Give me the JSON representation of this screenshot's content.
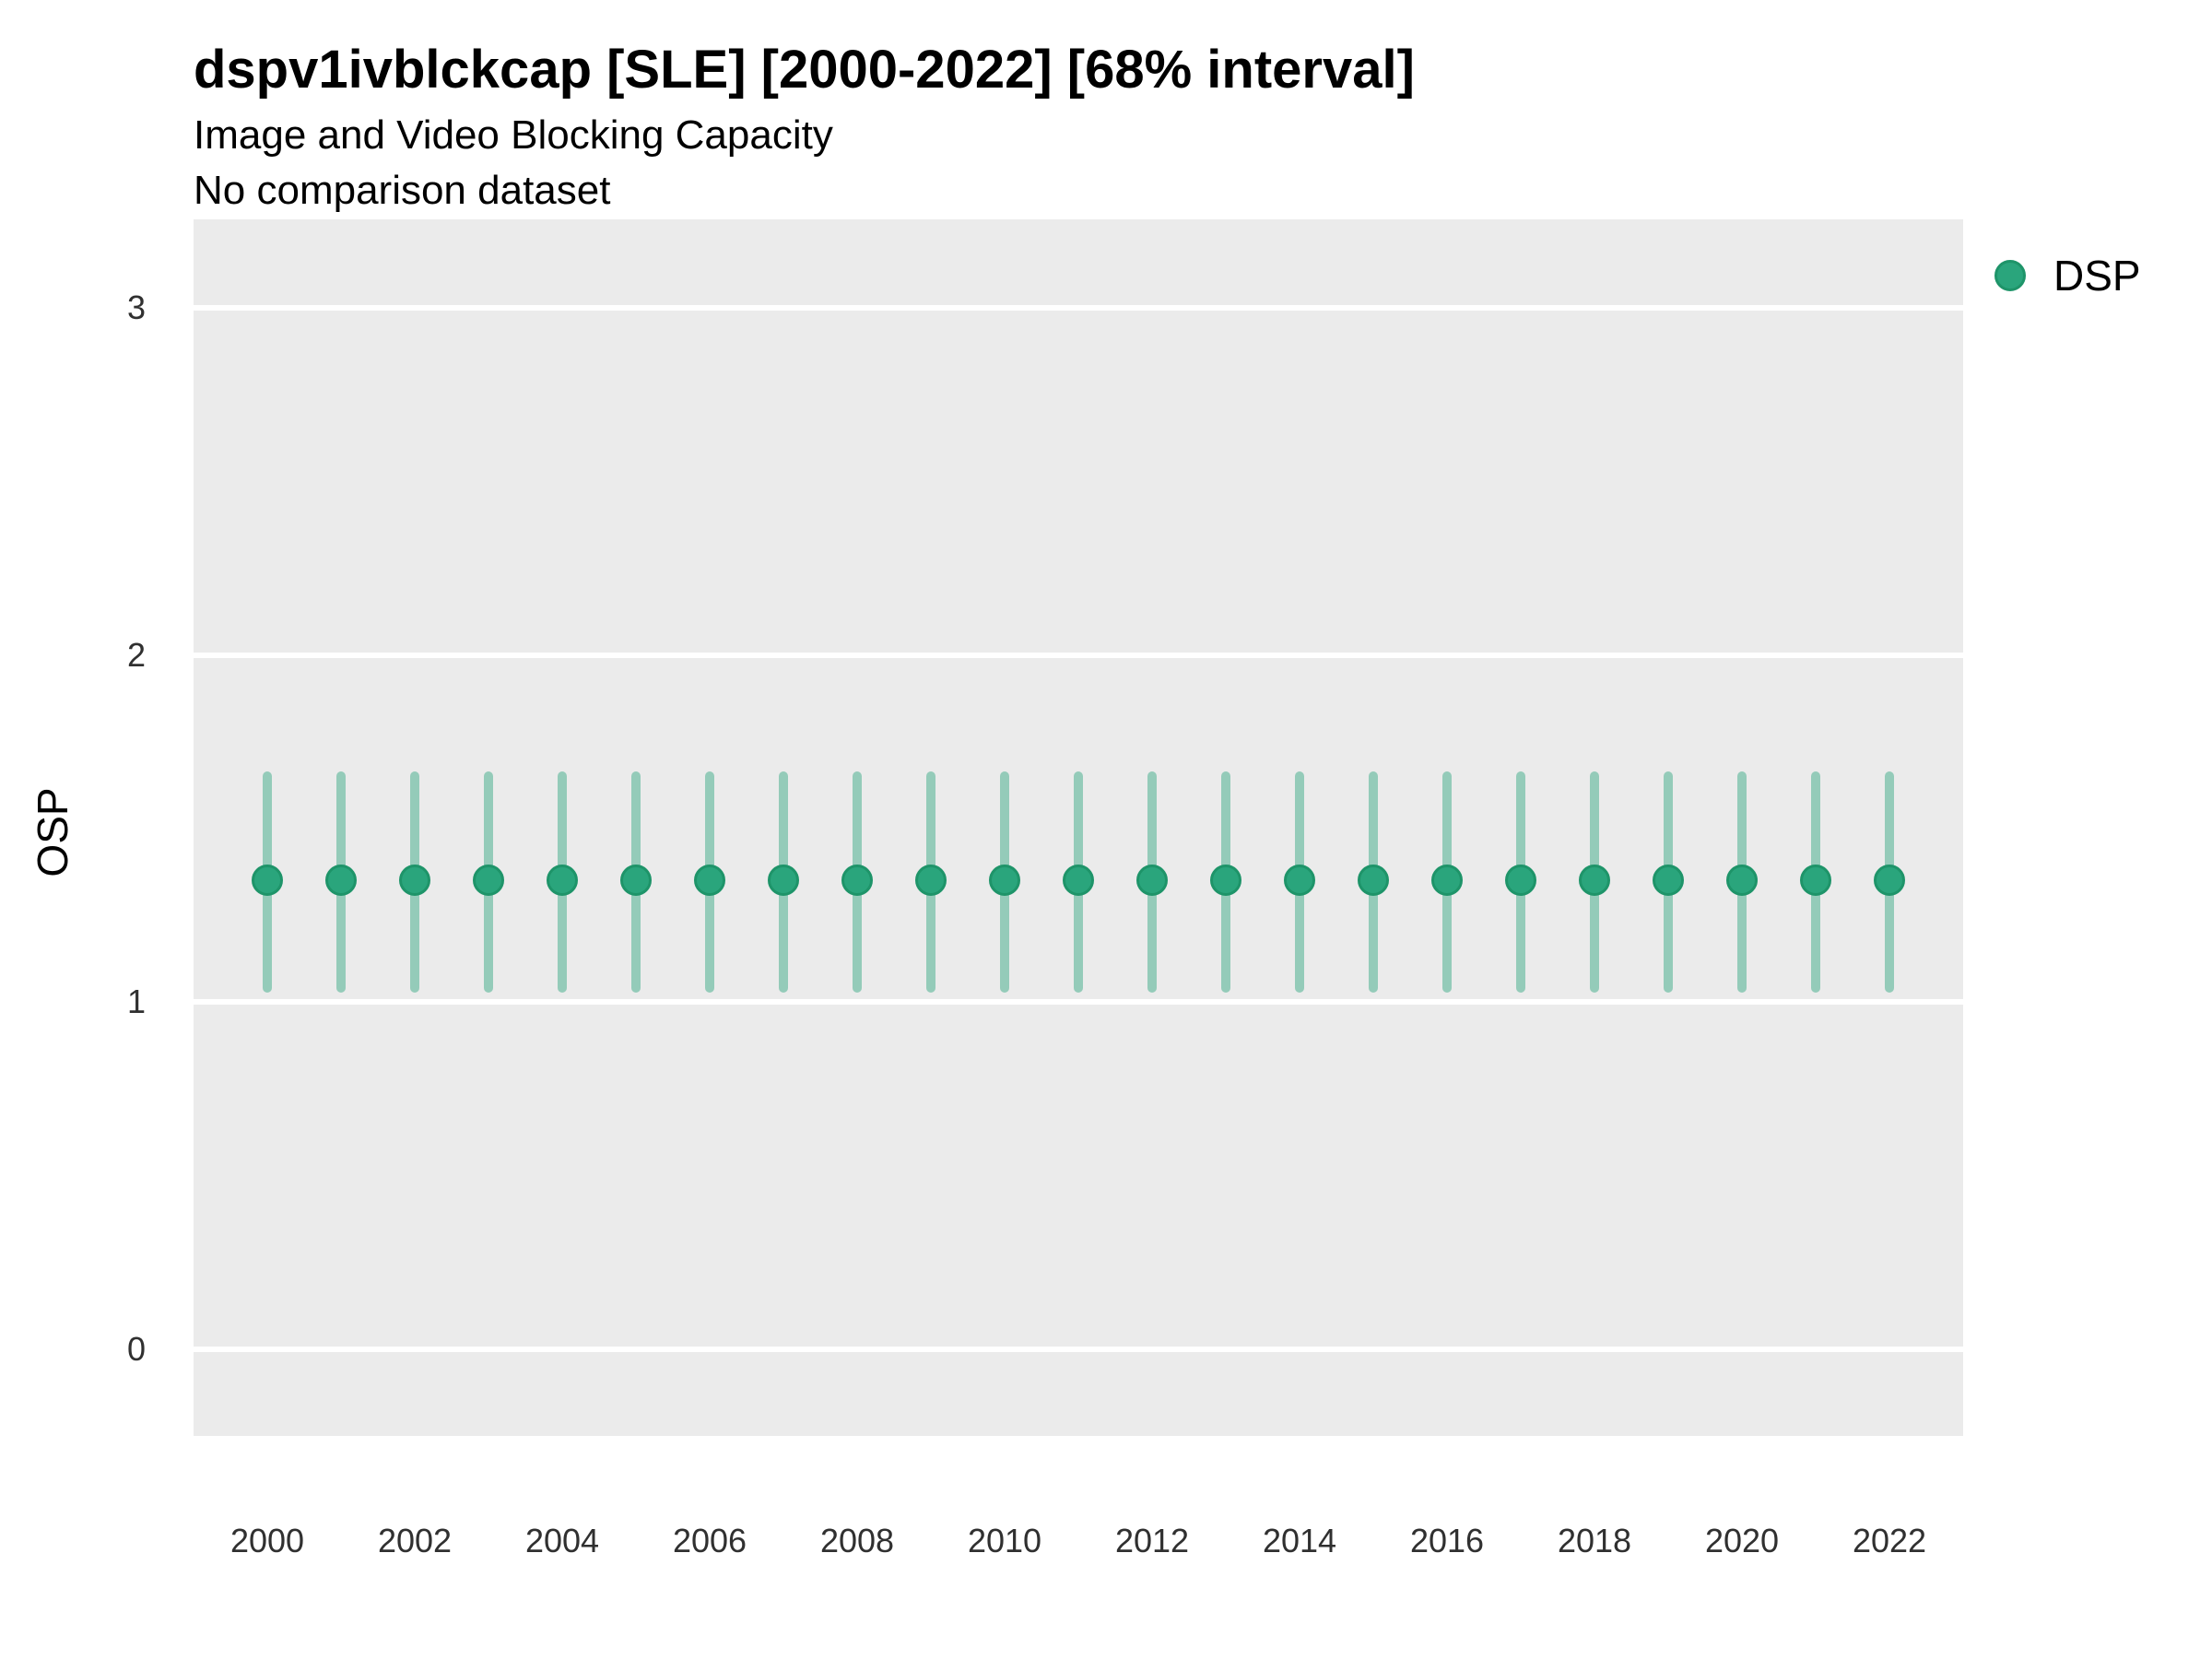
{
  "header": {
    "title": "dspv1ivblckcap [SLE] [2000-2022] [68% interval]",
    "subtitle": "Image and Video Blocking Capacity",
    "note": "No comparison dataset"
  },
  "axes": {
    "y_label": "OSP",
    "y_tick_labels": [
      "3",
      "2",
      "1",
      "0"
    ],
    "x_tick_labels": [
      "2000",
      "2002",
      "2004",
      "2006",
      "2008",
      "2010",
      "2012",
      "2014",
      "2016",
      "2018",
      "2020",
      "2022"
    ]
  },
  "legend": {
    "items": [
      {
        "label": "DSP",
        "marker": "circle-icon"
      }
    ]
  },
  "colors": {
    "panel_bg": "#EBEBEB",
    "gridline": "#FFFFFF",
    "point_fill": "#2AA57C",
    "point_stroke": "#1E9469",
    "interval_bar": "rgba(42,165,124,0.45)",
    "tick_text": "#303030",
    "text": "#000000"
  },
  "chart_data": {
    "type": "scatter",
    "title": "dspv1ivblckcap [SLE] [2000-2022] [68% interval]",
    "subtitle": "Image and Video Blocking Capacity",
    "note": "No comparison dataset",
    "xlabel": "",
    "ylabel": "OSP",
    "legend_position": "right",
    "grid": "horizontal-major-only",
    "interval": "68%",
    "x": [
      2000,
      2001,
      2002,
      2003,
      2004,
      2005,
      2006,
      2007,
      2008,
      2009,
      2010,
      2011,
      2012,
      2013,
      2014,
      2015,
      2016,
      2017,
      2018,
      2019,
      2020,
      2021,
      2022
    ],
    "series": [
      {
        "name": "DSP",
        "mean": [
          1.35,
          1.35,
          1.35,
          1.35,
          1.35,
          1.35,
          1.35,
          1.35,
          1.35,
          1.35,
          1.35,
          1.35,
          1.35,
          1.35,
          1.35,
          1.35,
          1.35,
          1.35,
          1.35,
          1.35,
          1.35,
          1.35,
          1.35
        ],
        "lo68": [
          1.04,
          1.04,
          1.04,
          1.04,
          1.04,
          1.04,
          1.04,
          1.04,
          1.04,
          1.04,
          1.04,
          1.04,
          1.04,
          1.04,
          1.04,
          1.04,
          1.04,
          1.04,
          1.04,
          1.04,
          1.04,
          1.04,
          1.04
        ],
        "hi68": [
          1.65,
          1.65,
          1.65,
          1.65,
          1.65,
          1.65,
          1.65,
          1.65,
          1.65,
          1.65,
          1.65,
          1.65,
          1.65,
          1.65,
          1.65,
          1.65,
          1.65,
          1.65,
          1.65,
          1.65,
          1.65,
          1.65,
          1.65
        ]
      }
    ],
    "xticks": [
      2000,
      2002,
      2004,
      2006,
      2008,
      2010,
      2012,
      2014,
      2016,
      2018,
      2020,
      2022
    ],
    "yticks": [
      0,
      1,
      2,
      3
    ],
    "xlim": [
      1999,
      2023
    ],
    "ylim": [
      -0.25,
      3.255
    ]
  }
}
